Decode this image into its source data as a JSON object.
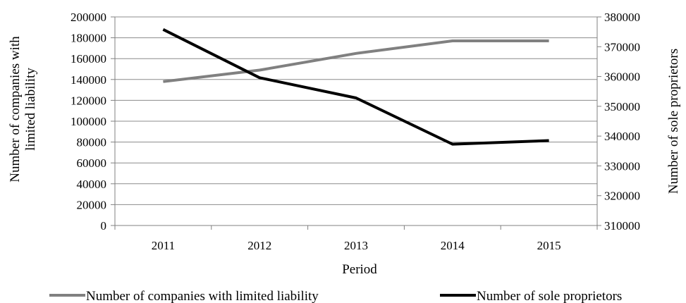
{
  "chart_data": {
    "type": "line",
    "categories": [
      "2011",
      "2012",
      "2013",
      "2014",
      "2015"
    ],
    "xlabel": "Period",
    "ylabel_left": [
      "Number of companies with",
      "limited liability"
    ],
    "ylabel_right": "Number of sole proprietors",
    "ylim_left": [
      0,
      200000
    ],
    "ylim_right": [
      310000,
      380000
    ],
    "yticks_left": [
      0,
      20000,
      40000,
      60000,
      80000,
      100000,
      120000,
      140000,
      160000,
      180000,
      200000
    ],
    "yticks_right": [
      310000,
      320000,
      330000,
      340000,
      350000,
      360000,
      370000,
      380000
    ],
    "grid": true,
    "legend_position": "bottom",
    "series": [
      {
        "name": "Number of companies with limited liability",
        "axis": "left",
        "color": "#808080",
        "values": [
          138000,
          149000,
          165000,
          177000,
          177000
        ]
      },
      {
        "name": "Number of sole proprietors",
        "axis": "right",
        "color": "#000000",
        "values": [
          375800,
          359600,
          352800,
          337300,
          338500
        ]
      }
    ]
  }
}
